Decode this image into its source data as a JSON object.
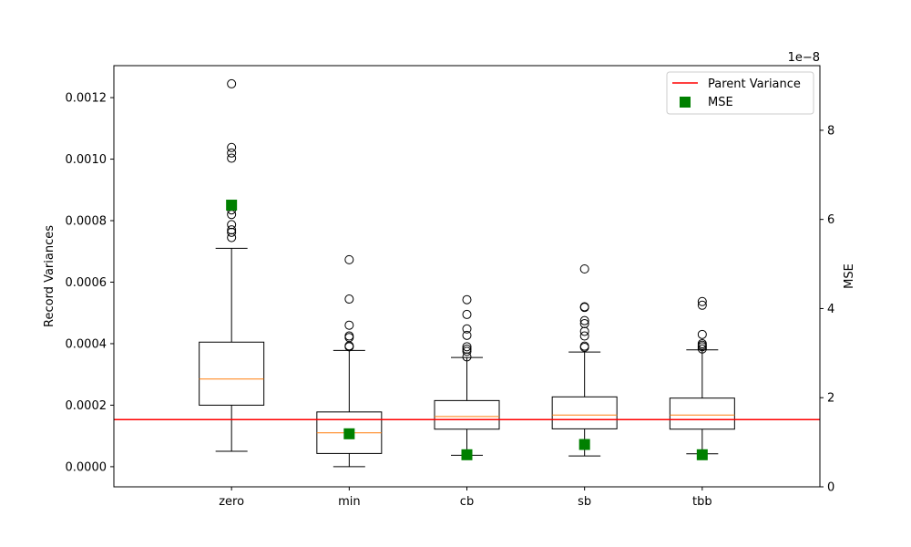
{
  "chart_data": {
    "type": "box",
    "categories": [
      "zero",
      "min",
      "cb",
      "sb",
      "tbb"
    ],
    "left_axis": {
      "label": "Record Variances",
      "ylim": [
        -6.55e-05,
        0.001304
      ],
      "ticks": [
        0.0,
        0.0002,
        0.0004,
        0.0006,
        0.0008,
        0.001,
        0.0012
      ],
      "tick_labels": [
        "0.0000",
        "0.0002",
        "0.0004",
        "0.0006",
        "0.0008",
        "0.0010",
        "0.0012"
      ]
    },
    "right_axis": {
      "label": "MSE",
      "ylim": [
        0,
        9.45
      ],
      "ticks": [
        0,
        2,
        4,
        6,
        8
      ],
      "tick_labels": [
        "0",
        "2",
        "4",
        "6",
        "8"
      ],
      "offset_text": "1e−8"
    },
    "boxes": [
      {
        "category": "zero",
        "whisker_low": 5e-05,
        "q1": 0.0002,
        "median": 0.000285,
        "q3": 0.000405,
        "whisker_high": 0.00071,
        "outliers": [
          0.001245,
          0.001038,
          0.00102,
          0.001003,
          0.000835,
          0.00082,
          0.000787,
          0.00077,
          0.000762,
          0.000745
        ]
      },
      {
        "category": "min",
        "whisker_low": 0.0,
        "q1": 4.3e-05,
        "median": 0.00011,
        "q3": 0.000178,
        "whisker_high": 0.000378,
        "outliers": [
          0.000673,
          0.000545,
          0.00046,
          0.000425,
          0.00042,
          0.000393,
          0.00039
        ]
      },
      {
        "category": "cb",
        "whisker_low": 3.7e-05,
        "q1": 0.000122,
        "median": 0.000163,
        "q3": 0.000215,
        "whisker_high": 0.000355,
        "outliers": [
          0.000543,
          0.000495,
          0.000448,
          0.000427,
          0.00039,
          0.000382,
          0.000375,
          0.000357
        ]
      },
      {
        "category": "sb",
        "whisker_low": 3.5e-05,
        "q1": 0.000123,
        "median": 0.000168,
        "q3": 0.000227,
        "whisker_high": 0.000373,
        "outliers": [
          0.000643,
          0.00052,
          0.000518,
          0.000475,
          0.000465,
          0.00044,
          0.000425,
          0.000392,
          0.000388
        ]
      },
      {
        "category": "tbb",
        "whisker_low": 4.2e-05,
        "q1": 0.000122,
        "median": 0.000168,
        "q3": 0.000223,
        "whisker_high": 0.00038,
        "outliers": [
          0.000537,
          0.000525,
          0.00043,
          0.0004,
          0.000395,
          0.00039,
          0.000383
        ]
      }
    ],
    "parent_variance": {
      "name": "Parent Variance",
      "value": 0.000153,
      "color": "#ff0000"
    },
    "mse": {
      "name": "MSE",
      "color": "#008000",
      "values": [
        6.32,
        1.19,
        0.72,
        0.95,
        0.72
      ]
    },
    "legend": {
      "placement": "top-right",
      "entries": [
        "Parent Variance",
        "MSE"
      ]
    },
    "grid": false,
    "colors": {
      "box": "#000000",
      "median": "#ff7f0e",
      "outlier": "#000000"
    }
  }
}
